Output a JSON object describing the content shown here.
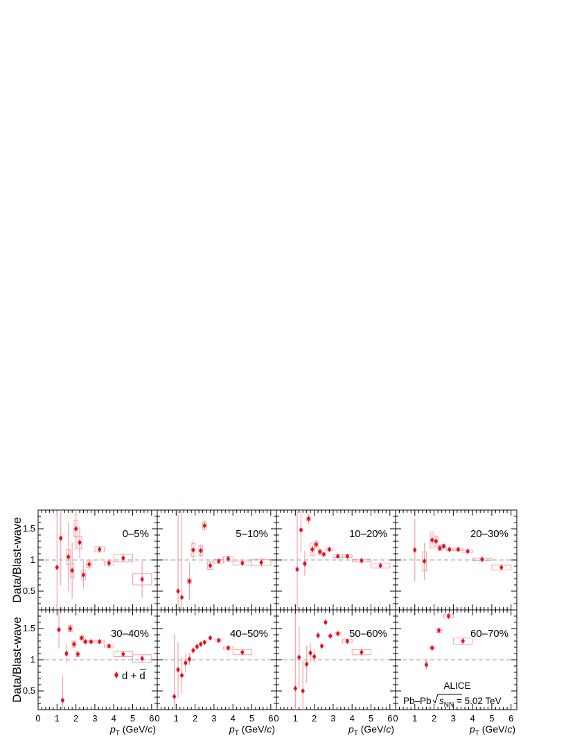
{
  "chart_data": {
    "type": "scatter",
    "ylabel": "Data/Blast-wave",
    "xlabel_main": "p",
    "xlabel_sub": "T",
    "xlabel_units_prefix": " (GeV/",
    "xlabel_units_c": "c",
    "xlabel_units_suffix": ")",
    "xlim": [
      0,
      6.3
    ],
    "ylim": [
      0.2,
      1.8
    ],
    "reference_line": 1,
    "x_ticks": [
      "0",
      "1",
      "2",
      "3",
      "4",
      "5",
      "6"
    ],
    "y_ticks": [
      "0.5",
      "1",
      "1.5"
    ],
    "marker_color": "#e8101d",
    "box_color": "#f2a4a8",
    "legend": {
      "marker": "◆",
      "text": "d + d"
    },
    "info": {
      "experiment": "ALICE",
      "system": "Pb–Pb",
      "energy_label": "s",
      "energy_sub": "NN",
      "energy_value": " = 5.02 TeV"
    },
    "panels": [
      {
        "label": "0–5%",
        "points": [
          [
            1.0,
            0.88,
            0.9,
            0.06,
            0.02
          ],
          [
            1.2,
            1.35,
            0.75,
            0.06,
            0.02
          ],
          [
            1.4,
            0.0,
            0.0,
            0.0,
            0.0
          ],
          [
            1.6,
            1.05,
            0.55,
            0.1,
            0.12
          ],
          [
            1.8,
            0.83,
            0.45,
            0.1,
            0.12
          ],
          [
            2.0,
            1.5,
            0.35,
            0.1,
            0.13
          ],
          [
            2.2,
            1.28,
            0.25,
            0.1,
            0.1
          ],
          [
            2.4,
            0.76,
            0.22,
            0.1,
            0.08
          ],
          [
            2.7,
            0.93,
            0.09,
            0.15,
            0.05
          ],
          [
            3.25,
            1.17,
            0.05,
            0.25,
            0.04
          ],
          [
            3.75,
            0.95,
            0.06,
            0.25,
            0.03
          ],
          [
            4.5,
            1.03,
            0.07,
            0.5,
            0.06
          ],
          [
            5.5,
            0.69,
            0.3,
            0.5,
            0.09
          ]
        ]
      },
      {
        "label": "5–10%",
        "points": [
          [
            1.1,
            0.5,
            1.3,
            0.0,
            0.0
          ],
          [
            1.3,
            0.4,
            1.4,
            0.0,
            0.0
          ],
          [
            1.7,
            0.66,
            0.3,
            0.1,
            0.04
          ],
          [
            1.9,
            1.16,
            0.15,
            0.1,
            0.1
          ],
          [
            2.3,
            1.15,
            0.1,
            0.1,
            0.08
          ],
          [
            2.5,
            1.55,
            0.08,
            0.1,
            0.06
          ],
          [
            2.8,
            0.91,
            0.05,
            0.15,
            0.06
          ],
          [
            3.25,
            0.98,
            0.04,
            0.25,
            0.03
          ],
          [
            3.75,
            1.02,
            0.04,
            0.25,
            0.04
          ],
          [
            4.5,
            0.95,
            0.03,
            0.5,
            0.03
          ],
          [
            5.5,
            0.96,
            0.08,
            0.5,
            0.05
          ]
        ]
      },
      {
        "label": "10–20%",
        "points": [
          [
            1.1,
            0.85,
            1.2,
            0.0,
            0.0
          ],
          [
            1.3,
            1.48,
            0.35,
            0.06,
            0.02
          ],
          [
            1.5,
            0.94,
            0.2,
            0.06,
            0.03
          ],
          [
            1.7,
            1.66,
            0.09,
            0.1,
            0.03
          ],
          [
            1.9,
            1.17,
            0.08,
            0.1,
            0.1
          ],
          [
            2.1,
            1.25,
            0.07,
            0.1,
            0.05
          ],
          [
            2.3,
            1.13,
            0.04,
            0.1,
            0.04
          ],
          [
            2.5,
            1.09,
            0.03,
            0.1,
            0.03
          ],
          [
            2.8,
            1.17,
            0.02,
            0.15,
            0.02
          ],
          [
            3.25,
            1.06,
            0.02,
            0.25,
            0.02
          ],
          [
            3.75,
            1.06,
            0.02,
            0.25,
            0.02
          ],
          [
            4.5,
            0.99,
            0.02,
            0.5,
            0.02
          ],
          [
            5.5,
            0.91,
            0.04,
            0.5,
            0.04
          ]
        ]
      },
      {
        "label": "20–30%",
        "points": [
          [
            1.0,
            1.16,
            0.5,
            0.06,
            0.02
          ],
          [
            1.5,
            0.98,
            0.3,
            0.1,
            0.15
          ],
          [
            1.9,
            1.32,
            0.1,
            0.1,
            0.13
          ],
          [
            2.1,
            1.3,
            0.08,
            0.1,
            0.08
          ],
          [
            2.3,
            1.19,
            0.05,
            0.1,
            0.04
          ],
          [
            2.5,
            1.22,
            0.03,
            0.1,
            0.03
          ],
          [
            2.8,
            1.17,
            0.02,
            0.15,
            0.02
          ],
          [
            3.25,
            1.17,
            0.02,
            0.25,
            0.02
          ],
          [
            3.75,
            1.14,
            0.02,
            0.25,
            0.02
          ],
          [
            4.5,
            1.01,
            0.02,
            0.5,
            0.02
          ],
          [
            5.5,
            0.88,
            0.04,
            0.5,
            0.04
          ]
        ]
      },
      {
        "label": "30–40%",
        "points": [
          [
            1.1,
            1.48,
            0.3,
            0.06,
            0.02
          ],
          [
            1.3,
            0.35,
            0.4,
            0.06,
            0.02
          ],
          [
            1.5,
            1.1,
            0.15,
            0.06,
            0.03
          ],
          [
            1.7,
            1.5,
            0.06,
            0.1,
            0.05
          ],
          [
            1.9,
            1.25,
            0.05,
            0.1,
            0.05
          ],
          [
            2.1,
            1.09,
            0.04,
            0.1,
            0.04
          ],
          [
            2.3,
            1.35,
            0.03,
            0.1,
            0.03
          ],
          [
            2.5,
            1.29,
            0.02,
            0.1,
            0.02
          ],
          [
            2.8,
            1.29,
            0.02,
            0.15,
            0.02
          ],
          [
            3.25,
            1.29,
            0.02,
            0.25,
            0.02
          ],
          [
            3.75,
            1.22,
            0.02,
            0.25,
            0.02
          ],
          [
            4.5,
            1.09,
            0.03,
            0.5,
            0.04
          ],
          [
            5.5,
            1.02,
            0.06,
            0.5,
            0.06
          ]
        ]
      },
      {
        "label": "40–50%",
        "points": [
          [
            0.9,
            0.41,
            1.0,
            0.0,
            0.0
          ],
          [
            1.1,
            0.84,
            0.45,
            0.06,
            0.02
          ],
          [
            1.3,
            0.75,
            0.3,
            0.06,
            0.02
          ],
          [
            1.5,
            0.95,
            0.15,
            0.06,
            0.02
          ],
          [
            1.7,
            1.01,
            0.1,
            0.06,
            0.02
          ],
          [
            1.9,
            1.15,
            0.06,
            0.06,
            0.02
          ],
          [
            2.1,
            1.21,
            0.05,
            0.06,
            0.02
          ],
          [
            2.3,
            1.25,
            0.04,
            0.06,
            0.02
          ],
          [
            2.5,
            1.28,
            0.03,
            0.06,
            0.02
          ],
          [
            2.8,
            1.35,
            0.02,
            0.06,
            0.02
          ],
          [
            3.25,
            1.31,
            0.02,
            0.15,
            0.02
          ],
          [
            3.75,
            1.19,
            0.02,
            0.25,
            0.02
          ],
          [
            4.5,
            1.12,
            0.03,
            0.5,
            0.04
          ]
        ]
      },
      {
        "label": "50–60%",
        "points": [
          [
            1.0,
            0.54,
            1.2,
            0.0,
            0.0
          ],
          [
            1.2,
            1.04,
            0.5,
            0.0,
            0.0
          ],
          [
            1.4,
            0.5,
            0.5,
            0.0,
            0.0
          ],
          [
            1.6,
            0.93,
            0.3,
            0.06,
            0.02
          ],
          [
            1.8,
            1.11,
            0.15,
            0.06,
            0.02
          ],
          [
            2.0,
            1.05,
            0.1,
            0.06,
            0.02
          ],
          [
            2.2,
            1.39,
            0.06,
            0.06,
            0.02
          ],
          [
            2.4,
            1.22,
            0.05,
            0.06,
            0.02
          ],
          [
            2.6,
            1.6,
            0.04,
            0.06,
            0.02
          ],
          [
            2.85,
            1.38,
            0.03,
            0.1,
            0.02
          ],
          [
            3.25,
            1.42,
            0.03,
            0.15,
            0.02
          ],
          [
            3.75,
            1.3,
            0.04,
            0.25,
            0.03
          ],
          [
            4.5,
            1.12,
            0.06,
            0.5,
            0.04
          ]
        ]
      },
      {
        "label": "60–70%",
        "points": [
          [
            1.6,
            0.92,
            0.08,
            0.06,
            0.02
          ],
          [
            1.9,
            1.19,
            0.06,
            0.15,
            0.02
          ],
          [
            2.25,
            1.47,
            0.05,
            0.15,
            0.03
          ],
          [
            2.75,
            1.7,
            0.05,
            0.25,
            0.03
          ],
          [
            3.5,
            1.3,
            0.06,
            0.5,
            0.05
          ]
        ]
      }
    ]
  }
}
